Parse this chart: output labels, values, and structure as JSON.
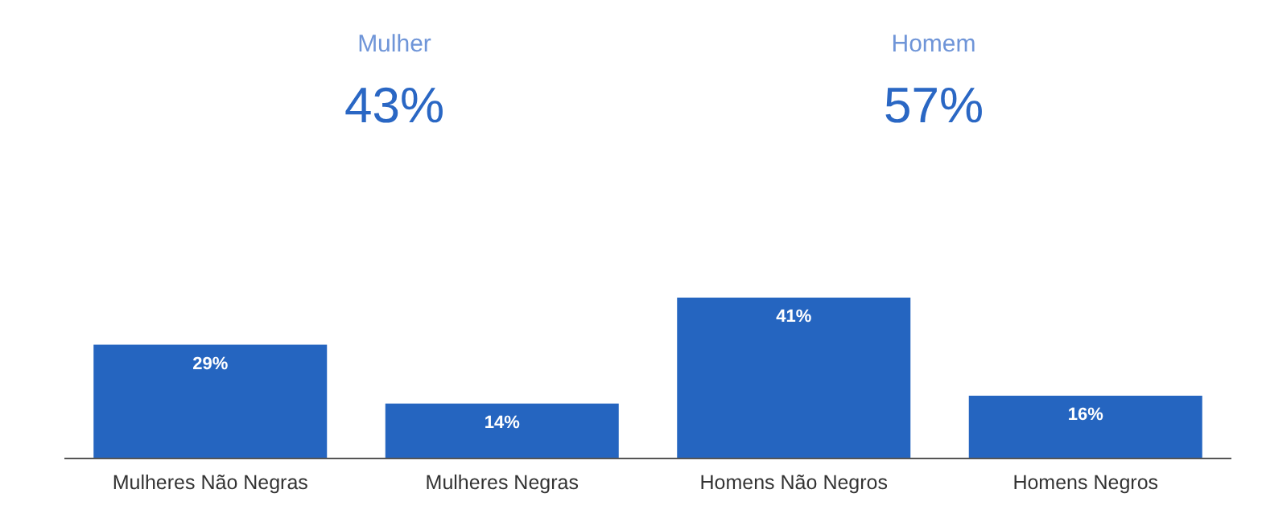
{
  "chart_data": [
    {
      "type": "other",
      "annotations": [
        "Mulher",
        "43%",
        "Homem",
        "57%"
      ],
      "color": "#2a67c4"
    },
    {
      "type": "bar",
      "categories": [
        "Mulheres Não Negras",
        "Mulheres Negras",
        "Homens Não Negros",
        "Homens Negros"
      ],
      "values": [
        29,
        14,
        41,
        16
      ],
      "value_labels": [
        "29%",
        "14%",
        "41%",
        "16%"
      ],
      "color": "#2565c0"
    }
  ]
}
